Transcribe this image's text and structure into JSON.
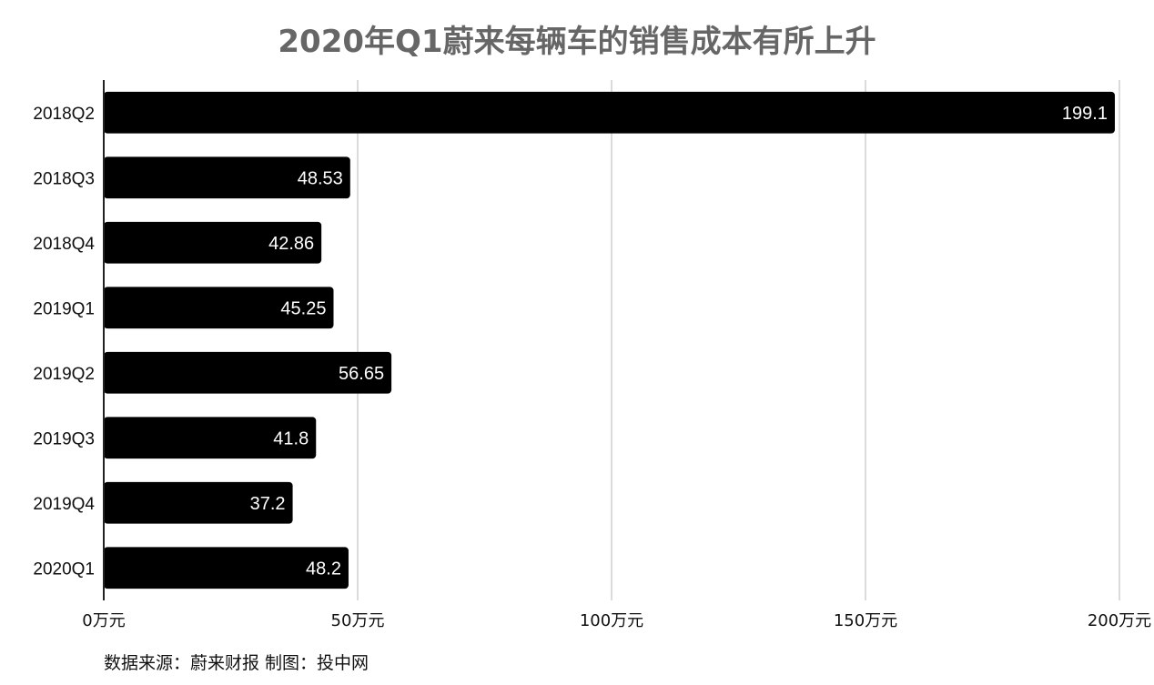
{
  "chart_data": {
    "type": "bar",
    "orientation": "horizontal",
    "title": "2020年Q1蔚来每辆车的销售成本有所上升",
    "categories": [
      "2018Q2",
      "2018Q3",
      "2018Q4",
      "2019Q1",
      "2019Q2",
      "2019Q3",
      "2019Q4",
      "2020Q1"
    ],
    "values": [
      199.1,
      48.53,
      42.86,
      45.25,
      56.65,
      41.8,
      37.2,
      48.2
    ],
    "value_labels": [
      "199.1",
      "48.53",
      "42.86",
      "45.25",
      "56.65",
      "41.8",
      "37.2",
      "48.2"
    ],
    "xlim": [
      0,
      200
    ],
    "x_ticks": [
      0,
      50,
      100,
      150,
      200
    ],
    "x_tick_labels": [
      "0万元",
      "50万元",
      "100万元",
      "150万元",
      "200万元"
    ],
    "bar_color": "#000000",
    "grid": true
  },
  "source_note": "数据来源：蔚来财报   制图：投中网"
}
